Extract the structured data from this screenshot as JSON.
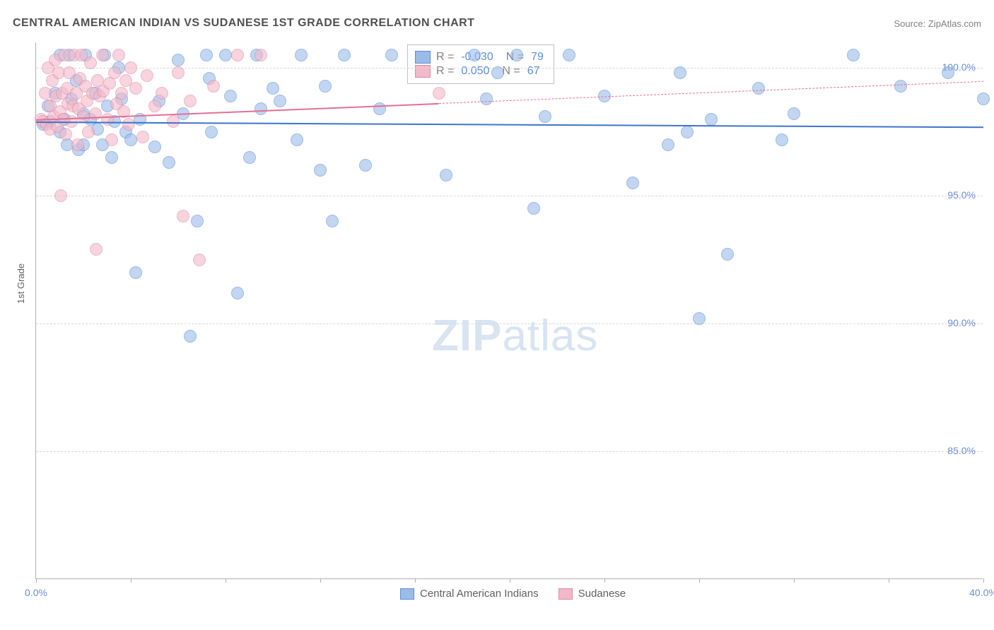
{
  "title": "CENTRAL AMERICAN INDIAN VS SUDANESE 1ST GRADE CORRELATION CHART",
  "source_label": "Source: ",
  "source_site": "ZipAtlas.com",
  "y_axis_label": "1st Grade",
  "watermark_a": "ZIP",
  "watermark_b": "atlas",
  "chart": {
    "type": "scatter",
    "xlim": [
      0,
      40
    ],
    "ylim": [
      80,
      101
    ],
    "y_ticks": [
      85,
      90,
      95,
      100
    ],
    "y_tick_labels": [
      "85.0%",
      "90.0%",
      "95.0%",
      "100.0%"
    ],
    "x_ticks": [
      0,
      4,
      8,
      12,
      16,
      20,
      24,
      28,
      32,
      36,
      40
    ],
    "x_tick_labels_shown": {
      "0": "0.0%",
      "40": "40.0%"
    },
    "background_color": "#ffffff",
    "grid_color": "#d8d8d8",
    "axis_color": "#b0b0b0",
    "marker_radius": 9,
    "marker_fill_opacity": 0.35,
    "marker_stroke_width": 1.2,
    "series": [
      {
        "name": "Central American Indians",
        "color_fill": "#9bbce8",
        "color_stroke": "#5b8dd6",
        "R": "-0.030",
        "N": "79",
        "trend": {
          "x1": 0,
          "y1": 97.9,
          "x2": 40,
          "y2": 97.7,
          "solid_until_x": 40,
          "color": "#3f73c9",
          "width": 2.2
        },
        "points": [
          [
            0.3,
            97.8
          ],
          [
            0.5,
            98.5
          ],
          [
            0.6,
            97.9
          ],
          [
            0.8,
            99.0
          ],
          [
            1.0,
            97.5
          ],
          [
            1.0,
            100.5
          ],
          [
            1.2,
            98.0
          ],
          [
            1.3,
            97.0
          ],
          [
            1.4,
            100.5
          ],
          [
            1.5,
            98.8
          ],
          [
            1.7,
            99.5
          ],
          [
            1.8,
            96.8
          ],
          [
            2.0,
            98.2
          ],
          [
            2.0,
            97.0
          ],
          [
            2.1,
            100.5
          ],
          [
            2.3,
            98.0
          ],
          [
            2.5,
            99.0
          ],
          [
            2.6,
            97.6
          ],
          [
            2.8,
            97.0
          ],
          [
            2.9,
            100.5
          ],
          [
            3.0,
            98.5
          ],
          [
            3.2,
            96.5
          ],
          [
            3.3,
            97.9
          ],
          [
            3.5,
            100.0
          ],
          [
            3.6,
            98.8
          ],
          [
            3.8,
            97.5
          ],
          [
            4.0,
            97.2
          ],
          [
            4.2,
            92.0
          ],
          [
            4.4,
            98.0
          ],
          [
            5.0,
            96.9
          ],
          [
            5.2,
            98.7
          ],
          [
            5.6,
            96.3
          ],
          [
            6.0,
            100.3
          ],
          [
            6.2,
            98.2
          ],
          [
            6.5,
            89.5
          ],
          [
            6.8,
            94.0
          ],
          [
            7.2,
            100.5
          ],
          [
            7.3,
            99.6
          ],
          [
            7.4,
            97.5
          ],
          [
            8.0,
            100.5
          ],
          [
            8.2,
            98.9
          ],
          [
            8.5,
            91.2
          ],
          [
            9.0,
            96.5
          ],
          [
            9.3,
            100.5
          ],
          [
            9.5,
            98.4
          ],
          [
            10.0,
            99.2
          ],
          [
            10.3,
            98.7
          ],
          [
            11.0,
            97.2
          ],
          [
            11.2,
            100.5
          ],
          [
            12.0,
            96.0
          ],
          [
            12.2,
            99.3
          ],
          [
            12.5,
            94.0
          ],
          [
            13.0,
            100.5
          ],
          [
            13.9,
            96.2
          ],
          [
            14.5,
            98.4
          ],
          [
            15.0,
            100.5
          ],
          [
            17.3,
            95.8
          ],
          [
            18.5,
            100.5
          ],
          [
            19.0,
            98.8
          ],
          [
            19.5,
            99.8
          ],
          [
            20.3,
            100.5
          ],
          [
            21.0,
            94.5
          ],
          [
            21.5,
            98.1
          ],
          [
            22.5,
            100.5
          ],
          [
            24.0,
            98.9
          ],
          [
            25.2,
            95.5
          ],
          [
            26.7,
            97.0
          ],
          [
            27.2,
            99.8
          ],
          [
            27.5,
            97.5
          ],
          [
            28.0,
            90.2
          ],
          [
            28.5,
            98.0
          ],
          [
            29.2,
            92.7
          ],
          [
            30.5,
            99.2
          ],
          [
            31.5,
            97.2
          ],
          [
            32.0,
            98.2
          ],
          [
            34.5,
            100.5
          ],
          [
            36.5,
            99.3
          ],
          [
            38.5,
            99.8
          ],
          [
            40.0,
            98.8
          ]
        ]
      },
      {
        "name": "Sudanese",
        "color_fill": "#f2b9c9",
        "color_stroke": "#e089a3",
        "R": " 0.050",
        "N": "67",
        "trend": {
          "x1": 0,
          "y1": 98.0,
          "x2": 40,
          "y2": 99.5,
          "solid_until_x": 17,
          "color": "#e46f94",
          "width": 2.2
        },
        "points": [
          [
            0.2,
            98.0
          ],
          [
            0.3,
            97.9
          ],
          [
            0.4,
            99.0
          ],
          [
            0.45,
            97.8
          ],
          [
            0.5,
            100.0
          ],
          [
            0.6,
            98.5
          ],
          [
            0.6,
            97.6
          ],
          [
            0.7,
            99.5
          ],
          [
            0.75,
            98.1
          ],
          [
            0.8,
            100.3
          ],
          [
            0.85,
            98.9
          ],
          [
            0.9,
            97.7
          ],
          [
            0.95,
            99.8
          ],
          [
            1.0,
            98.3
          ],
          [
            1.05,
            95.0
          ],
          [
            1.1,
            99.0
          ],
          [
            1.15,
            98.0
          ],
          [
            1.2,
            100.5
          ],
          [
            1.25,
            97.4
          ],
          [
            1.3,
            99.2
          ],
          [
            1.35,
            98.6
          ],
          [
            1.4,
            99.8
          ],
          [
            1.5,
            97.9
          ],
          [
            1.55,
            98.5
          ],
          [
            1.6,
            100.5
          ],
          [
            1.7,
            99.0
          ],
          [
            1.75,
            97.0
          ],
          [
            1.8,
            98.4
          ],
          [
            1.85,
            99.6
          ],
          [
            1.9,
            100.5
          ],
          [
            2.0,
            98.1
          ],
          [
            2.1,
            99.3
          ],
          [
            2.15,
            98.7
          ],
          [
            2.2,
            97.5
          ],
          [
            2.3,
            100.2
          ],
          [
            2.4,
            99.0
          ],
          [
            2.5,
            98.2
          ],
          [
            2.55,
            92.9
          ],
          [
            2.6,
            99.5
          ],
          [
            2.7,
            98.9
          ],
          [
            2.8,
            100.5
          ],
          [
            2.85,
            99.1
          ],
          [
            3.0,
            98.0
          ],
          [
            3.1,
            99.4
          ],
          [
            3.2,
            97.2
          ],
          [
            3.3,
            99.8
          ],
          [
            3.4,
            98.6
          ],
          [
            3.5,
            100.5
          ],
          [
            3.6,
            99.0
          ],
          [
            3.7,
            98.3
          ],
          [
            3.8,
            99.5
          ],
          [
            3.9,
            97.8
          ],
          [
            4.0,
            100.0
          ],
          [
            4.2,
            99.2
          ],
          [
            4.5,
            97.3
          ],
          [
            4.7,
            99.7
          ],
          [
            5.0,
            98.5
          ],
          [
            5.3,
            99.0
          ],
          [
            5.8,
            97.9
          ],
          [
            6.0,
            99.8
          ],
          [
            6.2,
            94.2
          ],
          [
            6.5,
            98.7
          ],
          [
            6.9,
            92.5
          ],
          [
            7.5,
            99.3
          ],
          [
            8.5,
            100.5
          ],
          [
            9.5,
            100.5
          ],
          [
            17.0,
            99.0
          ]
        ]
      }
    ]
  },
  "legend_r_prefix": "R = ",
  "legend_n_prefix": "N = ",
  "bottom_legend": [
    {
      "label": "Central American Indians",
      "fill": "#9bbce8",
      "stroke": "#5b8dd6"
    },
    {
      "label": "Sudanese",
      "fill": "#f2b9c9",
      "stroke": "#e089a3"
    }
  ]
}
